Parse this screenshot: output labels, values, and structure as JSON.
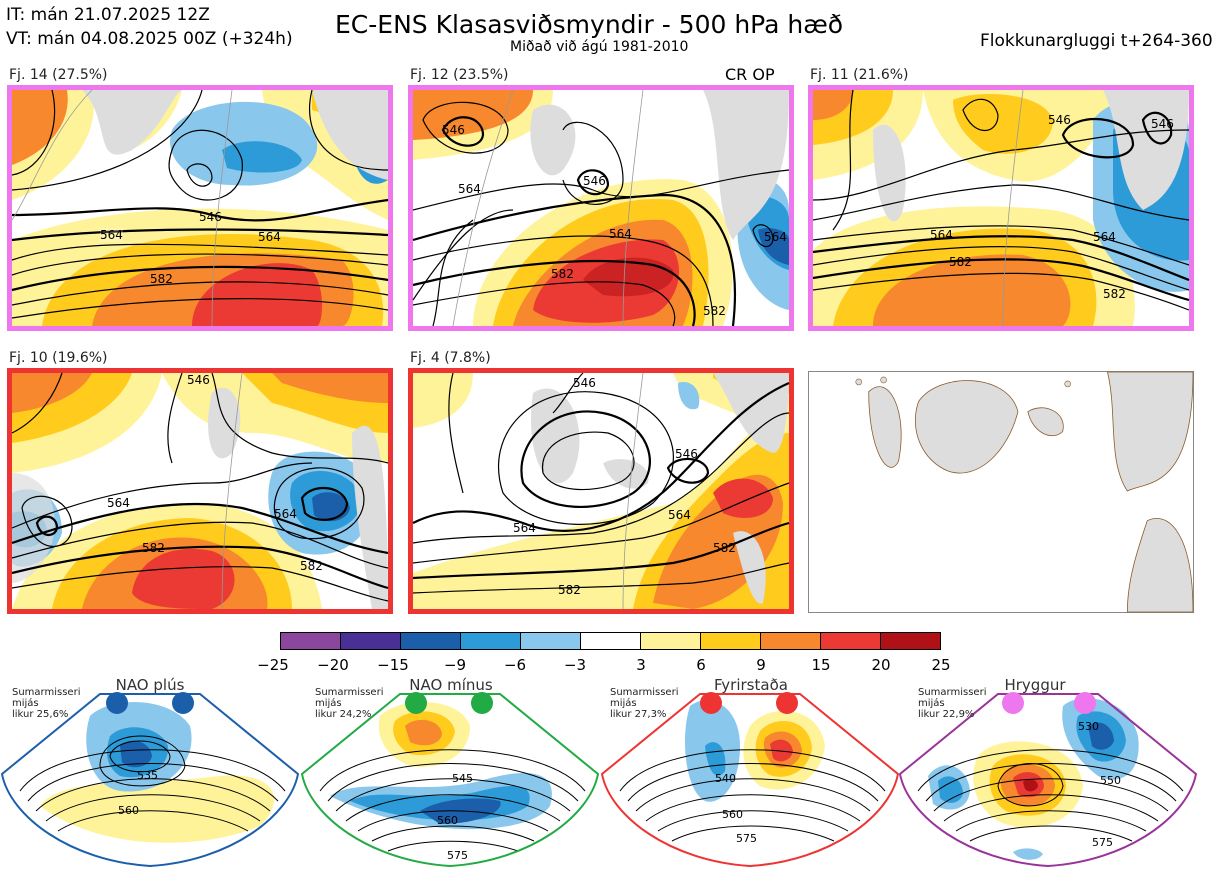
{
  "header": {
    "it_line": "IT: mán 21.07.2025 12Z",
    "vt_line": "VT: mán 04.08.2025 00Z  (+324h)",
    "title": "EC-ENS Klasasviðsmyndir - 500 hPa hæð",
    "subtitle": "Miðað við ágú 1981-2010",
    "window": "Flokkunargluggi t+264-360",
    "cr_op": "CR OP"
  },
  "panels": [
    {
      "label": "Fj. 14 (27.5%)",
      "border_color": "#ee77ee",
      "contours": [
        "564",
        "546",
        "564",
        "582"
      ]
    },
    {
      "label": "Fj. 12 (23.5%)",
      "border_color": "#ee77ee",
      "contours": [
        "546",
        "546",
        "564",
        "564",
        "582",
        "582",
        "564"
      ]
    },
    {
      "label": "Fj. 11 (21.6%)",
      "border_color": "#ee77ee",
      "contours": [
        "546",
        "546",
        "564",
        "564",
        "582",
        "582"
      ]
    },
    {
      "label": "Fj. 10 (19.6%)",
      "border_color": "#ee3333",
      "contours": [
        "546",
        "564",
        "564",
        "582",
        "582"
      ]
    },
    {
      "label": "Fj. 4 (7.8%)",
      "border_color": "#ee3333",
      "contours": [
        "546",
        "546",
        "564",
        "564",
        "582",
        "582"
      ]
    }
  ],
  "colorbar": {
    "colors": [
      "#8b479b",
      "#4a2f96",
      "#1b5fab",
      "#2c9bd8",
      "#89c7ec",
      "#ffffff",
      "#fff39a",
      "#ffcc1e",
      "#f7882d",
      "#ea3a33",
      "#b01116"
    ],
    "ticks": [
      "−25",
      "−20",
      "−15",
      "−9",
      "−6",
      "−3",
      "3",
      "6",
      "9",
      "15",
      "20",
      "25"
    ]
  },
  "regimes": [
    {
      "name": "NAO plús",
      "season": "Sumarmisseri",
      "mean": "mijás",
      "prob": "likur 25,6%",
      "color": "#1b5fab",
      "contours": [
        "535",
        "560"
      ]
    },
    {
      "name": "NAO mínus",
      "season": "Sumarmisseri",
      "mean": "mijás",
      "prob": "likur 24,2%",
      "color": "#22aa44",
      "contours": [
        "545",
        "560",
        "575"
      ]
    },
    {
      "name": "Fyrirstaða",
      "season": "Sumarmisseri",
      "mean": "mijás",
      "prob": "likur 27,3%",
      "color": "#ee3333",
      "contours": [
        "540",
        "560",
        "575"
      ]
    },
    {
      "name": "Hryggur",
      "season": "Sumarmisseri",
      "mean": "mijás",
      "prob": "likur 22,9%",
      "color": "#993399",
      "contours": [
        "530",
        "550",
        "575"
      ]
    }
  ]
}
